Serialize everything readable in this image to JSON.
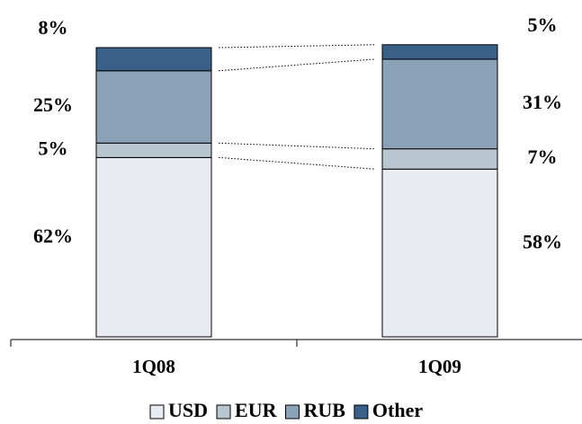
{
  "chart_data": {
    "type": "stacked_bar",
    "categories": [
      "1Q08",
      "1Q09"
    ],
    "series": [
      {
        "name": "USD",
        "color": "#e8ecf2",
        "values": [
          62,
          58
        ],
        "value_labels": [
          "62%",
          "58%"
        ]
      },
      {
        "name": "EUR",
        "color": "#b8c6d0",
        "values": [
          5,
          7
        ],
        "value_labels": [
          "5%",
          "7%"
        ]
      },
      {
        "name": "RUB",
        "color": "#8ba1b8",
        "values": [
          25,
          31
        ],
        "value_labels": [
          "25%",
          "31%"
        ]
      },
      {
        "name": "Other",
        "color": "#3b6088",
        "values": [
          8,
          5
        ],
        "value_labels": [
          "8%",
          "5%"
        ]
      }
    ]
  }
}
